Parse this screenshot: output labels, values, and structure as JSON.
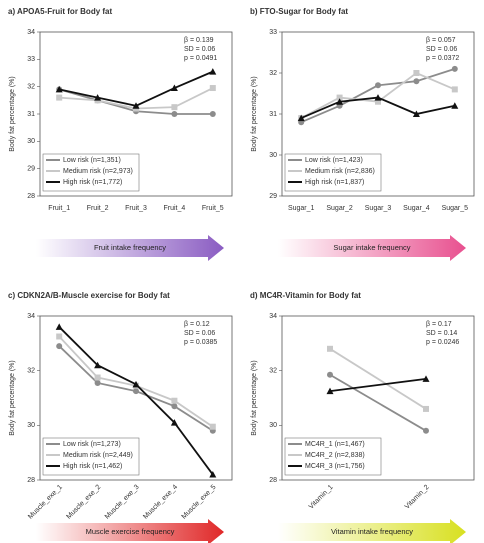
{
  "chart_data": [
    {
      "type": "line",
      "title": "a) APOA5-Fruit for Body fat",
      "y_label": "Body fat percentage (%)",
      "categories": [
        "Fruit_1",
        "Fruit_2",
        "Fruit_3",
        "Fruit_4",
        "Fruit_5"
      ],
      "series": [
        {
          "name": "Low risk (n=1,351)",
          "color": "#8c8c8c",
          "marker": "circle",
          "values": [
            31.9,
            31.5,
            31.1,
            31.0,
            31.0
          ]
        },
        {
          "name": "Medium risk (n=2,973)",
          "color": "#c8c8c8",
          "marker": "square",
          "values": [
            31.6,
            31.5,
            31.2,
            31.25,
            31.95
          ]
        },
        {
          "name": "High risk (n=1,772)",
          "color": "#111111",
          "marker": "triangle",
          "values": [
            31.9,
            31.6,
            31.3,
            31.95,
            32.55
          ]
        }
      ],
      "ylim": [
        28,
        34
      ],
      "yticks": [
        28,
        29,
        30,
        31,
        32,
        33,
        34
      ],
      "annotations": [
        "β = 0.139",
        "SD = 0.06",
        "p = 0.0491"
      ],
      "arrow_label": "Fruit intake frequency",
      "arrow_color": "#8a5cc2"
    },
    {
      "type": "line",
      "title": "b) FTO-Sugar for Body fat",
      "y_label": "Body fat percentage (%)",
      "categories": [
        "Sugar_1",
        "Sugar_2",
        "Sugar_3",
        "Sugar_4",
        "Sugar_5"
      ],
      "series": [
        {
          "name": "Low risk (n=1,423)",
          "color": "#8c8c8c",
          "marker": "circle",
          "values": [
            30.8,
            31.2,
            31.7,
            31.8,
            32.1
          ]
        },
        {
          "name": "Medium risk (n=2,836)",
          "color": "#c8c8c8",
          "marker": "square",
          "values": [
            30.9,
            31.4,
            31.3,
            32.0,
            31.6
          ]
        },
        {
          "name": "High risk (n=1,837)",
          "color": "#111111",
          "marker": "triangle",
          "values": [
            30.9,
            31.3,
            31.4,
            31.0,
            31.2
          ]
        }
      ],
      "ylim": [
        29,
        33
      ],
      "yticks": [
        29,
        30,
        31,
        32,
        33
      ],
      "annotations": [
        "β = 0.057",
        "SD = 0.06",
        "p = 0.0372"
      ],
      "arrow_label": "Sugar intake frequency",
      "arrow_color": "#e8508f"
    },
    {
      "type": "line",
      "title": "c) CDKN2A/B-Muscle exercise for Body fat",
      "y_label": "Body fat percentage (%)",
      "categories": [
        "Muscle_exe_1",
        "Muscle_exe_2",
        "Muscle_exe_3",
        "Muscle_exe_4",
        "Muscle_exe_5"
      ],
      "series": [
        {
          "name": "Low risk (n=1,273)",
          "color": "#8c8c8c",
          "marker": "circle",
          "values": [
            32.9,
            31.55,
            31.25,
            30.7,
            29.8
          ]
        },
        {
          "name": "Medium risk (n=2,449)",
          "color": "#c8c8c8",
          "marker": "square",
          "values": [
            33.25,
            31.75,
            31.45,
            30.9,
            29.95
          ]
        },
        {
          "name": "High risk (n=1,462)",
          "color": "#111111",
          "marker": "triangle",
          "values": [
            33.6,
            32.2,
            31.5,
            30.1,
            28.2
          ]
        }
      ],
      "ylim": [
        28,
        34
      ],
      "yticks": [
        28,
        30,
        32,
        34
      ],
      "annotations": [
        "β = 0.12",
        "SD = 0.06",
        "p = 0.0385"
      ],
      "arrow_label": "Muscle exercise frequency",
      "arrow_color": "#e02828"
    },
    {
      "type": "line",
      "title": "d) MC4R-Vitamin for Body fat",
      "y_label": "Body fat percentage (%)",
      "categories": [
        "Vitamin_1",
        "Vitamin_2"
      ],
      "series": [
        {
          "name": "MC4R_1 (n=1,467)",
          "color": "#8c8c8c",
          "marker": "circle",
          "values": [
            31.85,
            29.8
          ]
        },
        {
          "name": "MC4R_2 (n=2,838)",
          "color": "#c8c8c8",
          "marker": "square",
          "values": [
            32.8,
            30.6
          ]
        },
        {
          "name": "MC4R_3 (n=1,756)",
          "color": "#111111",
          "marker": "triangle",
          "values": [
            31.25,
            31.7
          ]
        }
      ],
      "ylim": [
        28,
        34
      ],
      "yticks": [
        28,
        30,
        32,
        34
      ],
      "annotations": [
        "β = 0.17",
        "SD = 0.14",
        "p = 0.0246"
      ],
      "arrow_label": "Vitamin intake frequency",
      "arrow_color": "#d8e020"
    }
  ]
}
